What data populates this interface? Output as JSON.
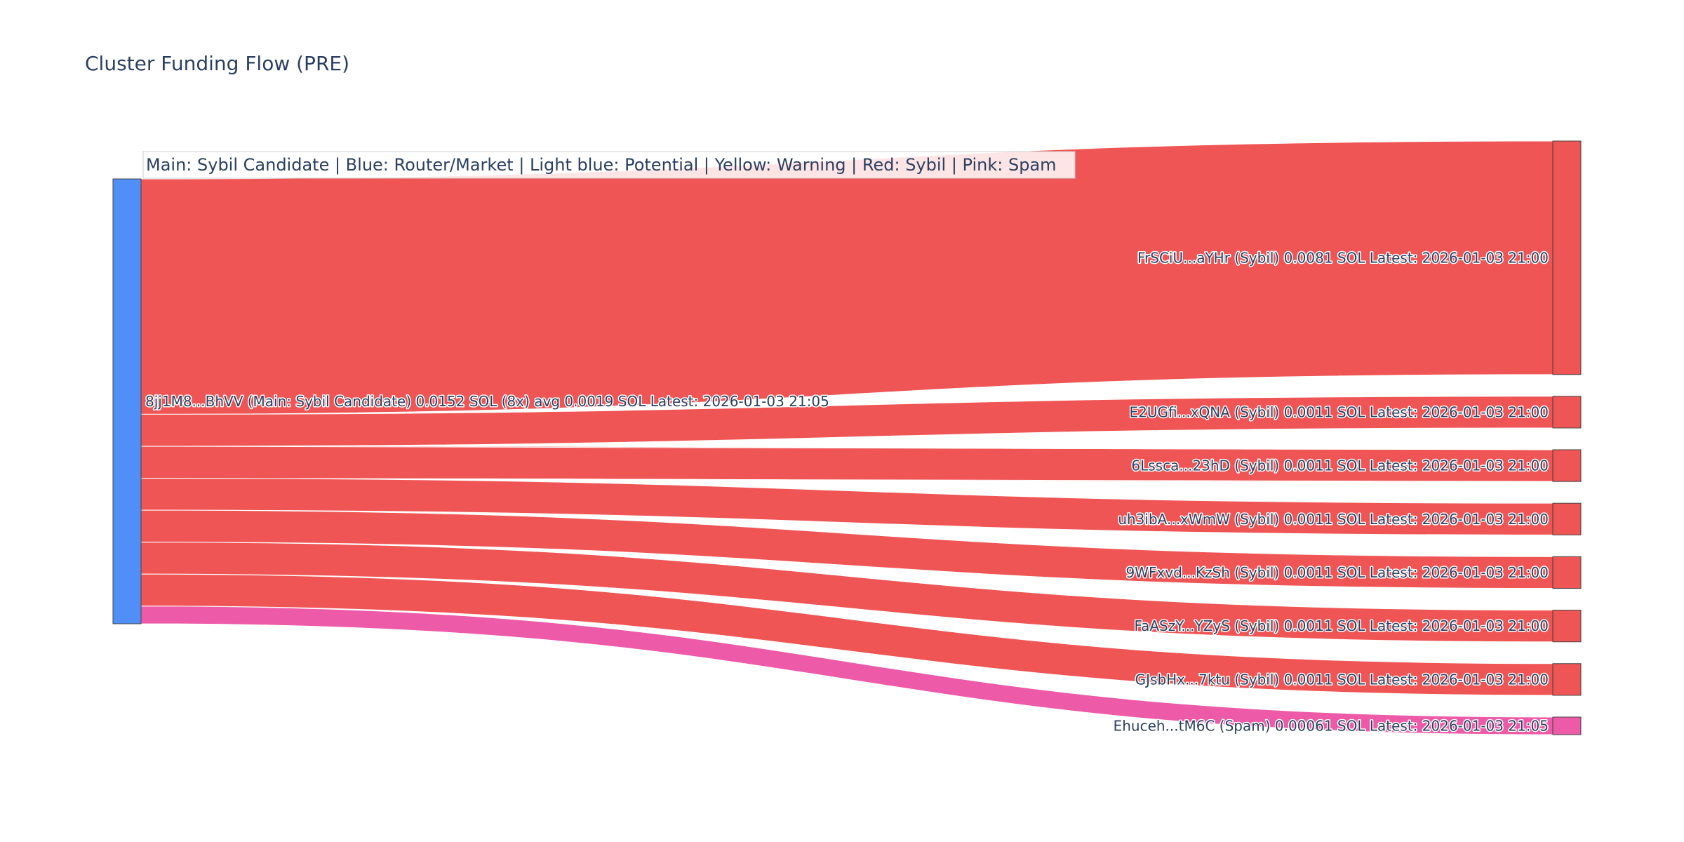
{
  "chart_data": {
    "type": "sankey",
    "title": "Cluster Funding Flow (PRE)",
    "annotation": "Main: Sybil Candidate  |  Blue: Router/Market | Light blue: Potential | Yellow: Warning | Red: Sybil | Pink: Spam",
    "colors": {
      "main": "#4f8ff7",
      "sybil": "#ef5555",
      "spam": "#ec5aa8",
      "node_border": "#444444"
    },
    "source": {
      "label": "8jj1M8...BhVV (Main: Sybil Candidate) 0.0152 SOL (8x) avg 0.0019 SOL Latest: 2026-01-03 21:05",
      "value": 0.0152
    },
    "targets": [
      {
        "label": "FrSCiU...aYHr (Sybil) 0.0081 SOL Latest: 2026-01-03 21:00",
        "value": 0.0081,
        "kind": "sybil"
      },
      {
        "label": "E2UGfi...xQNA (Sybil) 0.0011 SOL Latest: 2026-01-03 21:00",
        "value": 0.0011,
        "kind": "sybil"
      },
      {
        "label": "6Lssca...23hD (Sybil) 0.0011 SOL Latest: 2026-01-03 21:00",
        "value": 0.0011,
        "kind": "sybil"
      },
      {
        "label": "uh3ibA...xWmW (Sybil) 0.0011 SOL Latest: 2026-01-03 21:00",
        "value": 0.0011,
        "kind": "sybil"
      },
      {
        "label": "9WFxvd...KzSh (Sybil) 0.0011 SOL Latest: 2026-01-03 21:00",
        "value": 0.0011,
        "kind": "sybil"
      },
      {
        "label": "FaASzY...YZyS (Sybil) 0.0011 SOL Latest: 2026-01-03 21:00",
        "value": 0.0011,
        "kind": "sybil"
      },
      {
        "label": "GJsbHx...7ktu (Sybil) 0.0011 SOL Latest: 2026-01-03 21:00",
        "value": 0.0011,
        "kind": "sybil"
      },
      {
        "label": "Ehuceh...tM6C (Spam) 0.00061 SOL Latest: 2026-01-03 21:05",
        "value": 0.00061,
        "kind": "spam"
      }
    ]
  }
}
